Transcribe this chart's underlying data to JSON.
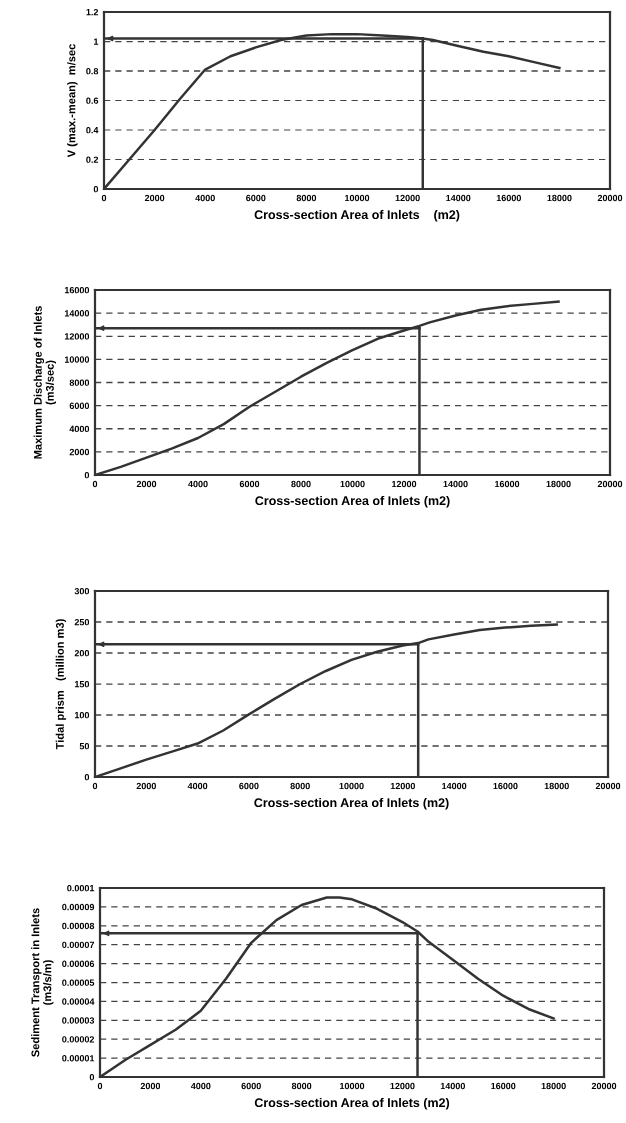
{
  "chart_data": [
    {
      "type": "line",
      "xlabel": "Cross-section Area of Inlets    (m2)",
      "ylabel": "V (max.-mean)  m/sec",
      "color": "#333333",
      "line_style": "solid",
      "marker": "none",
      "grid": "y",
      "x": [
        0,
        1000,
        2000,
        3000,
        4000,
        5000,
        6000,
        7000,
        8000,
        9000,
        10000,
        11000,
        12000,
        12600,
        13000,
        14000,
        15000,
        16000,
        17000,
        18000
      ],
      "values": [
        0,
        0.2,
        0.4,
        0.61,
        0.81,
        0.9,
        0.96,
        1.01,
        1.04,
        1.05,
        1.05,
        1.04,
        1.03,
        1.02,
        1.01,
        0.97,
        0.93,
        0.9,
        0.86,
        0.82
      ],
      "xlim": [
        0,
        20000
      ],
      "xticks": [
        0,
        2000,
        4000,
        6000,
        8000,
        10000,
        12000,
        14000,
        16000,
        18000,
        20000
      ],
      "ylim": [
        0,
        1.2
      ],
      "yticks": [
        0,
        {
          "value": 0.2,
          "label": "0.2"
        },
        {
          "value": 0.4,
          "label": "0.4"
        },
        {
          "value": 0.6,
          "label": "0.6"
        },
        {
          "value": 0.8,
          "label": "0.8"
        },
        1,
        {
          "value": 1.2,
          "label": "1.2"
        }
      ],
      "ref_lines": [
        {
          "axis": "x",
          "value": 12600
        },
        {
          "axis": "y",
          "value": 1.02
        }
      ]
    },
    {
      "type": "line",
      "xlabel": "Cross-section Area of Inlets (m2)",
      "ylabel": "Maximum Discharge of Inlets\n(m3/sec)",
      "color": "#333333",
      "line_style": "solid",
      "marker": "none",
      "grid": "y",
      "x": [
        0,
        1000,
        2000,
        3000,
        4000,
        5000,
        6000,
        7000,
        8000,
        9000,
        10000,
        11000,
        12000,
        12600,
        13000,
        14000,
        15000,
        16000,
        17000,
        18000
      ],
      "values": [
        0,
        700,
        1500,
        2300,
        3200,
        4400,
        5900,
        7200,
        8500,
        9700,
        10800,
        11800,
        12500,
        12900,
        13200,
        13800,
        14300,
        14600,
        14800,
        15000
      ],
      "xlim": [
        0,
        20000
      ],
      "xticks": [
        0,
        2000,
        4000,
        6000,
        8000,
        10000,
        12000,
        14000,
        16000,
        18000,
        20000
      ],
      "ylim": [
        0,
        16000
      ],
      "yticks": [
        0,
        2000,
        4000,
        6000,
        8000,
        10000,
        12000,
        14000,
        16000
      ],
      "ref_lines": [
        {
          "axis": "x",
          "value": 12600
        },
        {
          "axis": "y",
          "value": 12700
        }
      ]
    },
    {
      "type": "line",
      "xlabel": "Cross-section Area of Inlets (m2)",
      "ylabel": "Tidal prism   (million m3)",
      "color": "#333333",
      "line_style": "solid",
      "marker": "none",
      "grid": "y",
      "x": [
        0,
        1000,
        2000,
        3000,
        4000,
        5000,
        6000,
        7000,
        8000,
        9000,
        10000,
        11000,
        12000,
        12600,
        13000,
        14000,
        15000,
        16000,
        17000,
        18000
      ],
      "values": [
        0,
        14,
        28,
        41,
        54,
        75,
        101,
        126,
        150,
        171,
        189,
        202,
        212,
        216,
        222,
        230,
        237,
        241,
        244,
        246
      ],
      "xlim": [
        0,
        20000
      ],
      "xticks": [
        0,
        2000,
        4000,
        6000,
        8000,
        10000,
        12000,
        14000,
        16000,
        18000,
        20000
      ],
      "ylim": [
        0,
        300
      ],
      "yticks": [
        0,
        50,
        100,
        150,
        200,
        250,
        300
      ],
      "ref_lines": [
        {
          "axis": "x",
          "value": 12600
        },
        {
          "axis": "y",
          "value": 214
        }
      ]
    },
    {
      "type": "line",
      "xlabel": "Cross-section Area of Inlets (m2)",
      "ylabel": "Sediment Transport in Inlets\n(m3/s/m)",
      "color": "#333333",
      "line_style": "solid",
      "marker": "none",
      "grid": "y",
      "x": [
        0,
        1000,
        2000,
        3000,
        4000,
        5000,
        6000,
        7000,
        8000,
        9000,
        9500,
        10000,
        11000,
        12000,
        12600,
        13000,
        14000,
        15000,
        16000,
        17000,
        18000
      ],
      "values": [
        0,
        9e-06,
        1.7e-05,
        2.5e-05,
        3.5e-05,
        5.2e-05,
        7.1e-05,
        8.3e-05,
        9.1e-05,
        9.5e-05,
        9.5e-05,
        9.4e-05,
        8.9e-05,
        8.2e-05,
        7.7e-05,
        7.2e-05,
        6.2e-05,
        5.2e-05,
        4.3e-05,
        3.6e-05,
        3.1e-05
      ],
      "xlim": [
        0,
        20000
      ],
      "xticks": [
        0,
        2000,
        4000,
        6000,
        8000,
        10000,
        12000,
        14000,
        16000,
        18000,
        20000
      ],
      "ylim": [
        0,
        0.0001
      ],
      "yticks": [
        0,
        {
          "value": 1e-05,
          "label": "0.00001"
        },
        {
          "value": 2e-05,
          "label": "0.00002"
        },
        {
          "value": 3e-05,
          "label": "0.00003"
        },
        {
          "value": 4e-05,
          "label": "0.00004"
        },
        {
          "value": 5e-05,
          "label": "0.00005"
        },
        {
          "value": 6e-05,
          "label": "0.00006"
        },
        {
          "value": 7e-05,
          "label": "0.00007"
        },
        {
          "value": 8e-05,
          "label": "0.00008"
        },
        {
          "value": 9e-05,
          "label": "0.00009"
        },
        {
          "value": 0.0001,
          "label": "0.0001"
        }
      ],
      "ref_lines": [
        {
          "axis": "x",
          "value": 12600
        },
        {
          "axis": "y",
          "value": 7.6e-05
        }
      ]
    }
  ]
}
